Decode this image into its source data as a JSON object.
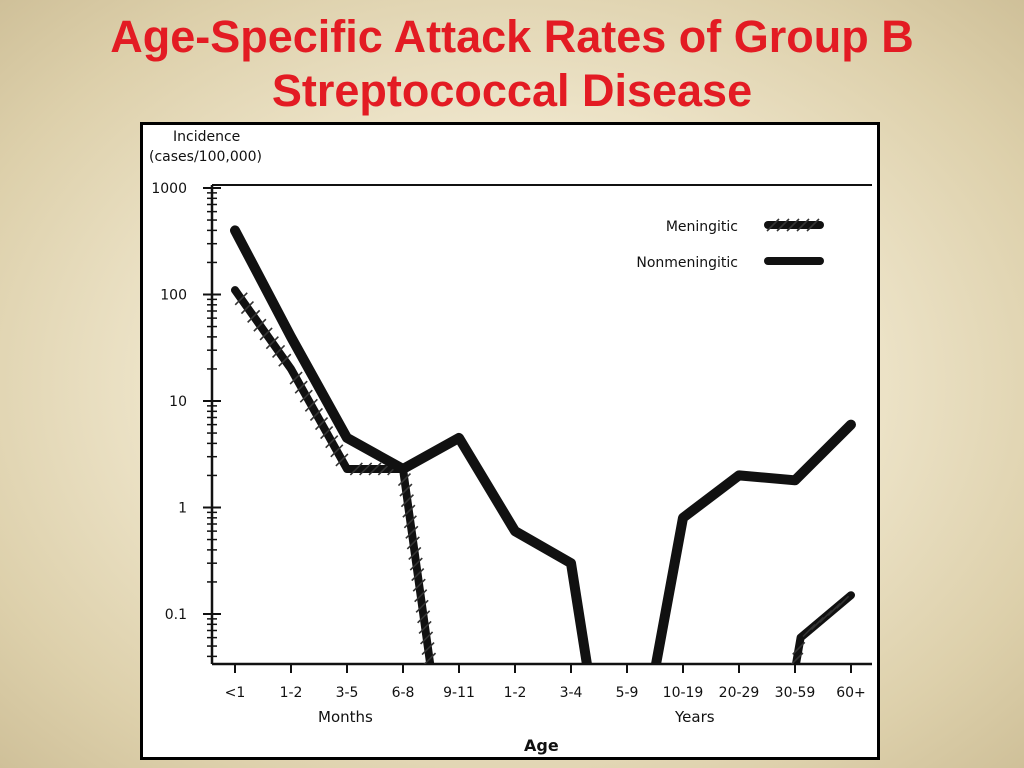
{
  "slide": {
    "title_line1": "Age-Specific Attack Rates of Group B",
    "title_line2": "Streptococcal Disease"
  },
  "colors": {
    "title": "#e31b23",
    "frame": "#000000",
    "lines": "#111111",
    "background": "#efe6cc"
  },
  "chart_data": {
    "type": "line",
    "ylabel_line1": "Incidence",
    "ylabel_line2": "(cases/100,000)",
    "xlabel": "Age",
    "group_labels": [
      "Months",
      "Years"
    ],
    "categories": [
      "<1",
      "1-2",
      "3-5",
      "6-8",
      "9-11",
      "1-2",
      "3-4",
      "5-9",
      "10-19",
      "20-29",
      "30-59",
      "60+"
    ],
    "y_scale": "log",
    "y_ticks": [
      "1000",
      "100",
      "10",
      "1",
      "0.1"
    ],
    "ylim": [
      0.03,
      1000
    ],
    "grid": false,
    "legend_position": "top-right",
    "series": [
      {
        "name": "Meningitic",
        "style": "hatched",
        "points": [
          [
            0,
            110
          ],
          [
            1,
            20
          ],
          [
            2,
            2.3
          ],
          [
            3,
            2.3
          ],
          [
            3.5,
            0.03
          ]
        ],
        "points_b": [
          [
            10,
            0.03
          ],
          [
            10.1,
            0.06
          ],
          [
            11,
            0.15
          ]
        ]
      },
      {
        "name": "Nonmeningitic",
        "style": "solid",
        "points": [
          [
            0,
            400
          ],
          [
            1,
            40
          ],
          [
            2,
            4.5
          ],
          [
            3,
            2.3
          ],
          [
            4,
            4.5
          ],
          [
            5,
            0.6
          ],
          [
            6,
            0.3
          ],
          [
            6.3,
            0.03
          ],
          [
            7.5,
            0.03
          ],
          [
            8,
            0.8
          ],
          [
            9,
            2
          ],
          [
            10,
            1.8
          ],
          [
            11,
            6
          ]
        ]
      }
    ]
  }
}
